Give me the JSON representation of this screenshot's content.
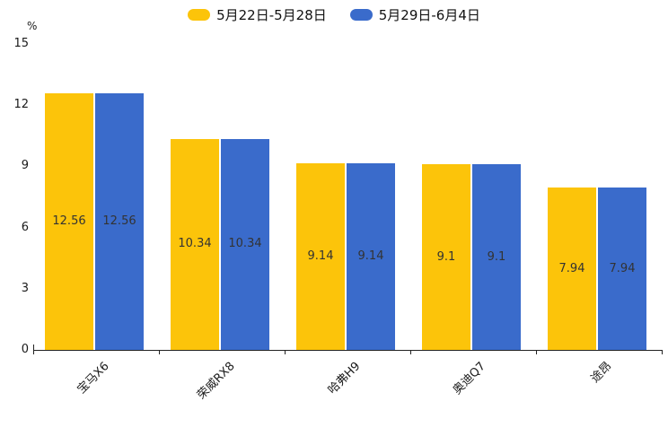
{
  "chart_data": {
    "type": "bar",
    "title": "",
    "ylabel": "%",
    "xlabel": "",
    "ylim": [
      0,
      15
    ],
    "yticks": [
      0,
      3,
      6,
      9,
      12,
      15
    ],
    "grid": false,
    "legend_position": "top-center",
    "data_labels_position": "inside-center",
    "categories": [
      "宝马X6",
      "荣威RX8",
      "哈弗H9",
      "奥迪Q7",
      "途昂"
    ],
    "series": [
      {
        "name": "5月22日-5月28日",
        "color": "#FCC40A",
        "values": [
          12.56,
          10.34,
          9.14,
          9.1,
          7.94
        ]
      },
      {
        "name": "5月29日-6月4日",
        "color": "#3A6BCB",
        "values": [
          12.56,
          10.34,
          9.14,
          9.1,
          7.94
        ]
      }
    ],
    "colors": {
      "axis": "#222222",
      "tick_text": "#1a1a1a",
      "bar_label_text": "#333333"
    }
  }
}
